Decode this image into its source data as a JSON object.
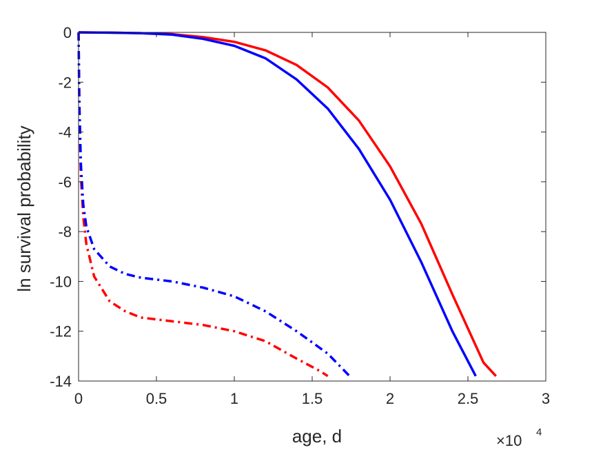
{
  "chart_data": {
    "type": "line",
    "title": "",
    "xlabel": "age, d",
    "ylabel": "ln survival probability",
    "x_exponent_label": {
      "base": "×10",
      "exponent": "4"
    },
    "xlim": [
      0,
      30000
    ],
    "ylim": [
      -14,
      0
    ],
    "xticks": [
      0,
      5000,
      10000,
      15000,
      20000,
      25000,
      30000
    ],
    "xtick_labels": [
      "0",
      "0.5",
      "1",
      "1.5",
      "2",
      "2.5",
      "3"
    ],
    "yticks": [
      0,
      -2,
      -4,
      -6,
      -8,
      -10,
      -12,
      -14
    ],
    "ytick_labels": [
      "0",
      "-2",
      "-4",
      "-6",
      "-8",
      "-10",
      "-12",
      "-14"
    ],
    "grid": false,
    "legend": "none",
    "series": [
      {
        "color": "#ff0000",
        "style": "solid",
        "x": [
          0,
          2000,
          4000,
          6000,
          8000,
          10000,
          12000,
          14000,
          16000,
          18000,
          20000,
          22000,
          24000,
          26000,
          26800
        ],
        "y": [
          0,
          -0.01,
          -0.03,
          -0.07,
          -0.19,
          -0.38,
          -0.72,
          -1.31,
          -2.21,
          -3.54,
          -5.38,
          -7.68,
          -10.52,
          -13.26,
          -13.8
        ]
      },
      {
        "color": "#0000ff",
        "style": "solid",
        "x": [
          0,
          2000,
          4000,
          6000,
          8000,
          10000,
          12000,
          14000,
          16000,
          18000,
          20000,
          22000,
          24000,
          25500
        ],
        "y": [
          0,
          -0.01,
          -0.03,
          -0.09,
          -0.26,
          -0.54,
          -1.04,
          -1.89,
          -3.06,
          -4.68,
          -6.72,
          -9.22,
          -12.0,
          -13.8
        ]
      },
      {
        "color": "#ff0000",
        "style": "dashdot",
        "x": [
          0,
          50,
          150,
          300,
          500,
          1000,
          2000,
          3000,
          4000,
          6000,
          8000,
          10000,
          12000,
          14000,
          15500,
          16000
        ],
        "y": [
          0,
          -3.0,
          -5.8,
          -7.4,
          -8.5,
          -9.8,
          -10.8,
          -11.2,
          -11.45,
          -11.6,
          -11.75,
          -12.0,
          -12.4,
          -13.1,
          -13.6,
          -13.8
        ]
      },
      {
        "color": "#0000ff",
        "style": "dashdot",
        "x": [
          0,
          50,
          150,
          300,
          500,
          1000,
          2000,
          3000,
          4000,
          6000,
          8000,
          10000,
          12000,
          14000,
          16000,
          17400
        ],
        "y": [
          0,
          -2.8,
          -5.3,
          -6.9,
          -7.8,
          -8.7,
          -9.4,
          -9.7,
          -9.85,
          -10.0,
          -10.25,
          -10.6,
          -11.2,
          -12.0,
          -12.9,
          -13.8
        ]
      }
    ]
  }
}
